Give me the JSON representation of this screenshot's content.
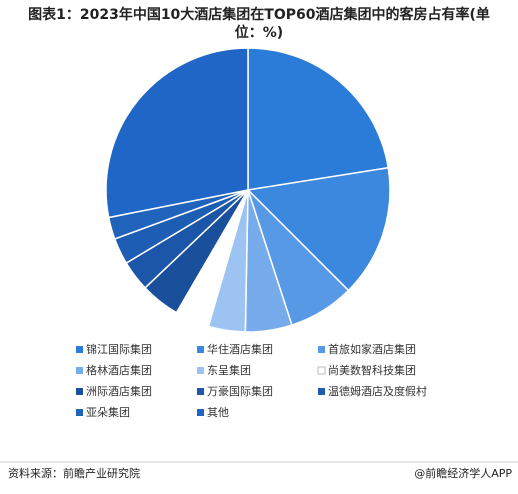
{
  "chart_data": {
    "type": "pie",
    "title": "图表1：2023年中国10大酒店集团在TOP60酒店集团中的客房占有率(单位：%)",
    "categories": [
      "锦江国际集团",
      "华住酒店集团",
      "首旅如家酒店集团",
      "格林酒店集团",
      "东呈集团",
      "尚美数智科技集团",
      "洲际酒店集团",
      "万豪国际集团",
      "温德姆酒店及度假村",
      "亚朵集团",
      "其他"
    ],
    "values": [
      22.5,
      15,
      7.5,
      5.3,
      4.2,
      3.9,
      4.5,
      3.5,
      3,
      2.5,
      28.1
    ],
    "colors": [
      "#2b7bd8",
      "#3d88df",
      "#5799e4",
      "#76aceb",
      "#9cc3f1",
      "#ffffff",
      "#1a4f9c",
      "#1c56a8",
      "#1d5db3",
      "#2063bb",
      "#1f66c6"
    ],
    "source": "资料来源：前瞻产业研究院",
    "credit": "@前瞻经济学人APP"
  }
}
